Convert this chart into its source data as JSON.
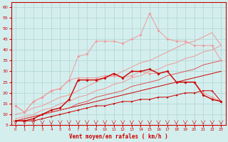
{
  "x": [
    0,
    1,
    2,
    3,
    4,
    5,
    6,
    7,
    8,
    9,
    10,
    11,
    12,
    13,
    14,
    15,
    16,
    17,
    18,
    19,
    20,
    21,
    22,
    23
  ],
  "line_dark_low": [
    7,
    7,
    7,
    8,
    9,
    10,
    11,
    12,
    13,
    14,
    14,
    15,
    16,
    16,
    17,
    17,
    18,
    18,
    19,
    20,
    20,
    21,
    21,
    16
  ],
  "line_dark_mid": [
    7,
    7,
    8,
    10,
    12,
    13,
    17,
    26,
    26,
    26,
    27,
    29,
    27,
    30,
    30,
    31,
    29,
    30,
    25,
    25,
    25,
    19,
    17,
    16
  ],
  "line_pink_mid": [
    14,
    11,
    16,
    18,
    21,
    22,
    26,
    27,
    27,
    27,
    28,
    28,
    27,
    28,
    30,
    29,
    29,
    30,
    25,
    25,
    25,
    20,
    18,
    16
  ],
  "line_pink_high": [
    14,
    11,
    16,
    18,
    21,
    22,
    26,
    37,
    38,
    44,
    44,
    44,
    43,
    45,
    47,
    57,
    49,
    45,
    44,
    44,
    42,
    42,
    42,
    35
  ],
  "line_diag1": [
    7,
    8,
    9,
    10,
    11,
    12,
    13,
    14,
    15,
    16,
    17,
    18,
    19,
    20,
    21,
    22,
    23,
    24,
    25,
    26,
    27,
    28,
    29,
    30
  ],
  "line_diag2": [
    7,
    8,
    9,
    10,
    11,
    12,
    13,
    15,
    16,
    18,
    19,
    20,
    21,
    23,
    24,
    25,
    26,
    28,
    29,
    30,
    31,
    33,
    34,
    35
  ],
  "line_diag3": [
    8,
    9,
    10,
    12,
    13,
    15,
    16,
    18,
    19,
    21,
    22,
    24,
    25,
    27,
    28,
    30,
    31,
    33,
    34,
    36,
    37,
    39,
    40,
    42
  ],
  "line_diag4": [
    10,
    11,
    13,
    14,
    16,
    18,
    19,
    21,
    23,
    25,
    27,
    28,
    30,
    32,
    34,
    35,
    37,
    39,
    41,
    43,
    44,
    46,
    48,
    42
  ],
  "color_dark": "#cc0000",
  "color_mid": "#dd5555",
  "color_light": "#ee9999",
  "color_diag_dark": "#cc0000",
  "color_diag_mid": "#dd6666",
  "bg_color": "#d4eeee",
  "grid_color": "#b0d4d4",
  "axis_label": "Vent moyen/en rafales ( km/h )",
  "yticks": [
    5,
    10,
    15,
    20,
    25,
    30,
    35,
    40,
    45,
    50,
    55,
    60
  ],
  "ylim": [
    5,
    62
  ],
  "xlim": [
    -0.5,
    23.5
  ]
}
